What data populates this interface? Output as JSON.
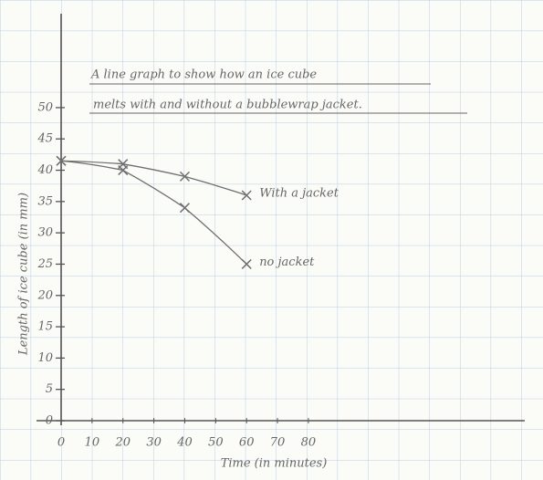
{
  "chart_data": {
    "type": "line",
    "title": [
      "A line graph to show how an ice cube",
      "melts with and without a bubblewrap jacket."
    ],
    "x_label": "Time (in minutes)",
    "y_label": "Length of ice cube (in mm)",
    "x": [
      0,
      20,
      40,
      60
    ],
    "series": [
      {
        "name": "With a jacket",
        "color": "#6f6f6f",
        "values": [
          41.5,
          41,
          39,
          36
        ]
      },
      {
        "name": "no jacket",
        "color": "#6f6f6f",
        "values": [
          41.5,
          40,
          34,
          25
        ]
      }
    ],
    "xlim": [
      0,
      150
    ],
    "ylim": [
      0,
      65
    ],
    "xticks": [
      0,
      10,
      20,
      30,
      40,
      50,
      60,
      70,
      80
    ],
    "yticks": [
      0,
      5,
      10,
      15,
      20,
      25,
      30,
      35,
      40,
      45,
      50
    ]
  }
}
